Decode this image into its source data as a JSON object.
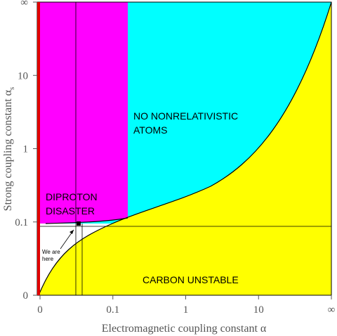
{
  "chart_data": {
    "type": "region",
    "x_label": "Electromagnetic coupling constant α",
    "y_label": "Strong coupling constant α",
    "y_label_subscript": "s",
    "xtick_labels": [
      "0",
      "0.1",
      "1",
      "10",
      "∞"
    ],
    "ytick_labels": [
      "0",
      "0.1",
      "1",
      "10",
      "∞"
    ],
    "regions": [
      {
        "lines": [
          "NO NONRELATIVISTIC",
          "ATOMS"
        ],
        "color": "#00ffff"
      },
      {
        "lines": [
          "DIPROTON",
          "DISASTER"
        ],
        "color": "#ff00ff"
      },
      {
        "lines": [
          "CARBON UNSTABLE"
        ],
        "color": "#ffff00"
      }
    ],
    "annotation": [
      "We are",
      "here"
    ]
  }
}
